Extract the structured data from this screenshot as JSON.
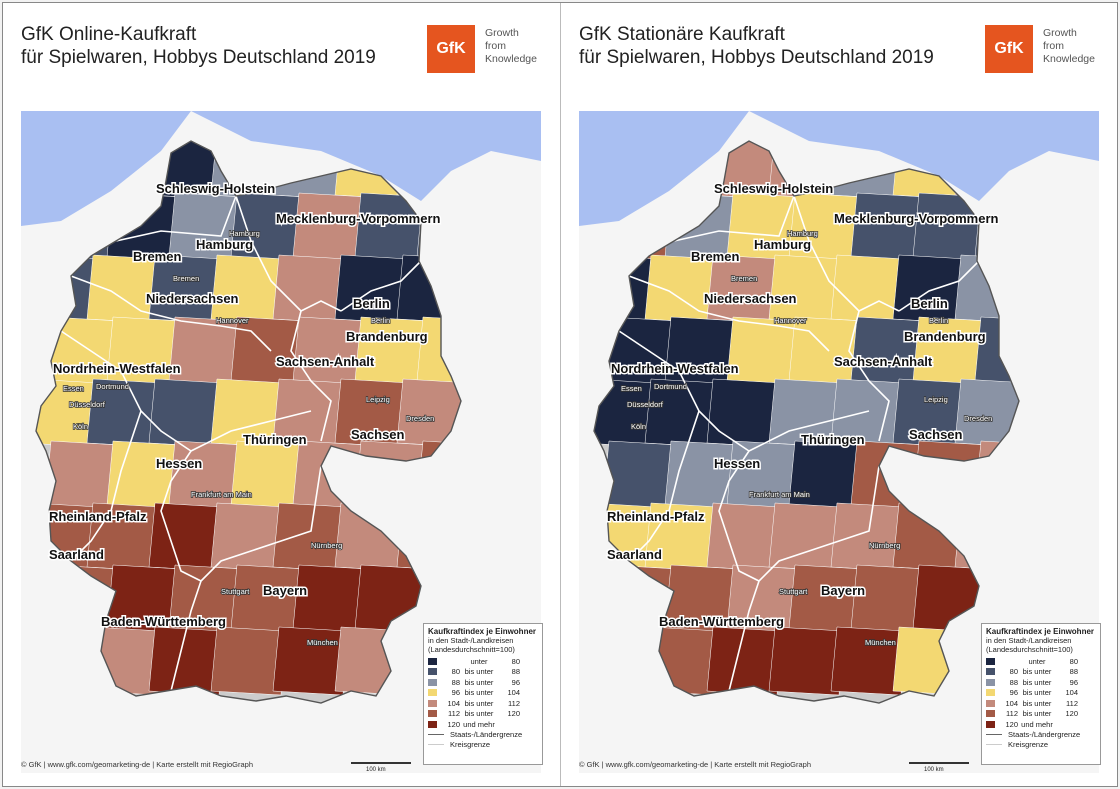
{
  "panels": [
    {
      "title_line1": "GfK Online-Kaufkraft",
      "title_line2": "für Spielwaren, Hobbys Deutschland 2019",
      "region_classes": [
        2,
        1,
        0,
        2,
        2,
        3,
        3,
        1,
        0,
        2,
        1,
        4,
        1,
        1,
        1,
        3,
        1,
        3,
        4,
        0,
        0,
        3,
        3,
        4,
        5,
        4,
        3,
        3,
        3,
        1,
        1,
        3,
        4,
        5,
        4,
        4,
        3,
        4,
        3,
        4,
        4,
        5,
        5,
        5,
        6,
        4,
        5,
        4,
        5,
        5,
        6,
        5,
        5,
        6,
        6,
        6,
        4,
        4,
        6,
        5,
        6,
        4
      ]
    },
    {
      "title_line1": "GfK Stationäre Kaufkraft",
      "title_line2": "für Spielwaren, Hobbys Deutschland 2019",
      "region_classes": [
        1,
        4,
        4,
        4,
        2,
        3,
        4,
        5,
        2,
        3,
        3,
        1,
        1,
        1,
        0,
        3,
        4,
        3,
        3,
        0,
        2,
        0,
        0,
        3,
        3,
        1,
        3,
        1,
        0,
        0,
        0,
        2,
        2,
        1,
        2,
        1,
        2,
        2,
        0,
        5,
        5,
        4,
        3,
        3,
        4,
        4,
        4,
        5,
        4,
        5,
        5,
        4,
        5,
        5,
        6,
        6,
        6,
        5,
        6,
        6,
        6,
        3
      ]
    }
  ],
  "logo": {
    "mark": "GfK",
    "line1": "Growth",
    "line2": "from",
    "line3": "Knowledge"
  },
  "states": [
    "Schleswig-Holstein",
    "Mecklenburg-Vorpommern",
    "Hamburg",
    "Bremen",
    "Niedersachsen",
    "Berlin",
    "Brandenburg",
    "Nordrhein-Westfalen",
    "Sachsen-Anhalt",
    "Sachsen",
    "Thüringen",
    "Hessen",
    "Rheinland-Pfalz",
    "Saarland",
    "Bayern",
    "Baden-Württemberg"
  ],
  "cities": [
    "Hamburg",
    "Bremen",
    "Hannover",
    "Berlin",
    "Essen",
    "Dortmund",
    "Düsseldorf",
    "Köln",
    "Leipzig",
    "Dresden",
    "Frankfurt am Main",
    "Nürnberg",
    "Stuttgart",
    "München"
  ],
  "legend": {
    "title": "Kaufkraftindex je Einwohner",
    "subtitle": "in den Stadt-/Landkreisen (Landesdurchschnitt=100)",
    "classes": [
      {
        "from": "",
        "mid": "unter",
        "to": "80",
        "color": "#1b2540"
      },
      {
        "from": "80",
        "mid": "bis unter",
        "to": "88",
        "color": "#46526b"
      },
      {
        "from": "88",
        "mid": "bis unter",
        "to": "96",
        "color": "#8a93a5"
      },
      {
        "from": "96",
        "mid": "bis unter",
        "to": "104",
        "color": "#f3d872"
      },
      {
        "from": "104",
        "mid": "bis unter",
        "to": "112",
        "color": "#c38a7c"
      },
      {
        "from": "112",
        "mid": "bis unter",
        "to": "120",
        "color": "#a35a46"
      },
      {
        "from": "120",
        "mid": "und mehr",
        "to": "",
        "color": "#7d2315"
      }
    ],
    "line1": "Staats-/Ländergrenze",
    "line2": "Kreisgrenze"
  },
  "scale_label": "100 km",
  "credit": "© GfK | www.gfk.com/geomarketing-de | Karte erstellt mit RegioGraph",
  "colors": {
    "sea": "#a9bff2",
    "neighbors": "#f5f5f5",
    "logo": "#e5551f"
  }
}
